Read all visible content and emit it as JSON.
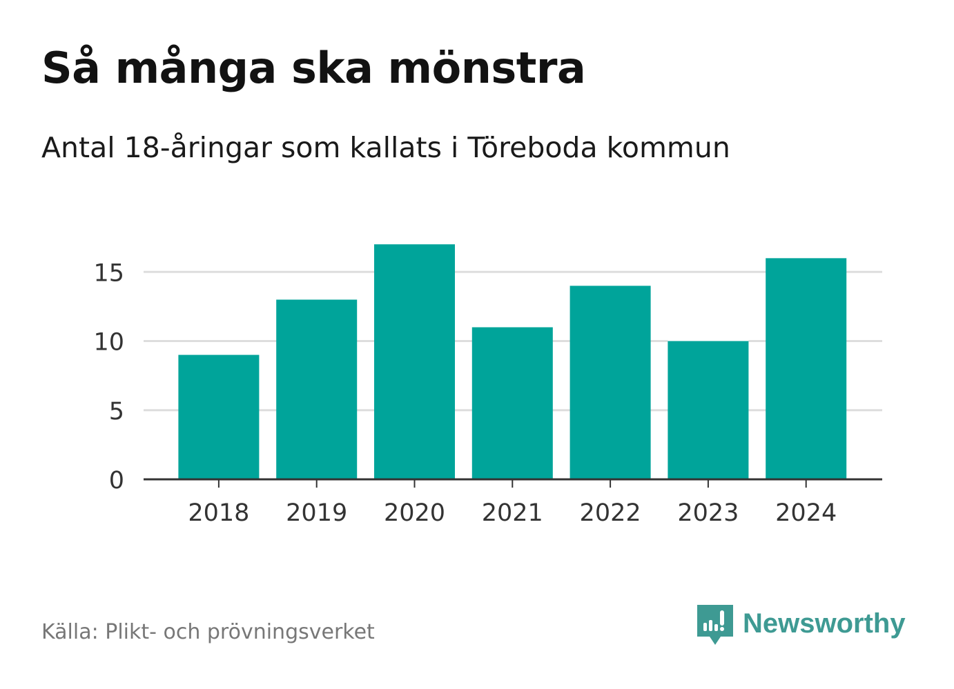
{
  "header": {
    "title": "Så många ska mönstra",
    "subtitle": "Antal 18-åringar som kallats i Töreboda kommun"
  },
  "footer": {
    "source": "Källa: Plikt- och prövningsverket",
    "brand": "Newsworthy",
    "brand_icon": "newsworthy-logo-icon"
  },
  "colors": {
    "bar": "#00a49a",
    "grid": "#dddddd",
    "axis": "#333333",
    "brand": "#3e9a93"
  },
  "chart_data": {
    "type": "bar",
    "title": "Så många ska mönstra",
    "subtitle": "Antal 18-åringar som kallats i Töreboda kommun",
    "categories": [
      "2018",
      "2019",
      "2020",
      "2021",
      "2022",
      "2023",
      "2024"
    ],
    "values": [
      9,
      13,
      17,
      11,
      14,
      10,
      16
    ],
    "xlabel": "",
    "ylabel": "",
    "ylim": [
      0,
      17
    ],
    "yticks": [
      0,
      5,
      10,
      15
    ],
    "grid": true
  }
}
